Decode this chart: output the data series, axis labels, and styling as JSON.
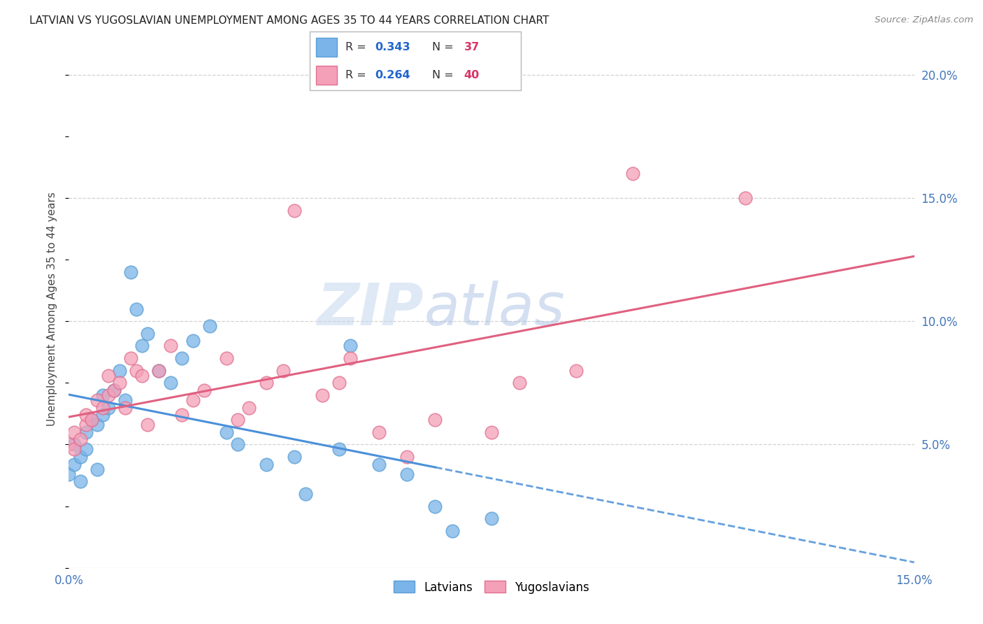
{
  "title": "LATVIAN VS YUGOSLAVIAN UNEMPLOYMENT AMONG AGES 35 TO 44 YEARS CORRELATION CHART",
  "source": "Source: ZipAtlas.com",
  "ylabel": "Unemployment Among Ages 35 to 44 years",
  "x_min": 0.0,
  "x_max": 0.15,
  "y_min": 0.0,
  "y_max": 0.21,
  "latvian_color": "#7ab4e8",
  "latvian_edge": "#5a9fd4",
  "yugoslavian_color": "#f4a0b8",
  "yugoslavian_edge": "#e07090",
  "trend_latvian_color": "#4a90d9",
  "trend_yugoslavian_color": "#e06080",
  "legend_blue": "#2266cc",
  "legend_pink": "#dd3366",
  "watermark_color": "#c8d8f0",
  "grid_color": "#cccccc",
  "background_color": "#ffffff",
  "latvians_label": "Latvians",
  "yugoslavians_label": "Yugoslavians",
  "latvian_x": [
    0.0,
    0.001,
    0.001,
    0.002,
    0.002,
    0.003,
    0.003,
    0.004,
    0.005,
    0.005,
    0.006,
    0.006,
    0.007,
    0.008,
    0.009,
    0.01,
    0.011,
    0.012,
    0.013,
    0.014,
    0.016,
    0.018,
    0.02,
    0.022,
    0.025,
    0.028,
    0.03,
    0.035,
    0.04,
    0.042,
    0.048,
    0.05,
    0.055,
    0.06,
    0.065,
    0.068,
    0.075
  ],
  "latvian_y": [
    0.038,
    0.042,
    0.05,
    0.035,
    0.045,
    0.048,
    0.055,
    0.06,
    0.04,
    0.058,
    0.062,
    0.07,
    0.065,
    0.072,
    0.08,
    0.068,
    0.12,
    0.105,
    0.09,
    0.095,
    0.08,
    0.075,
    0.085,
    0.092,
    0.098,
    0.055,
    0.05,
    0.042,
    0.045,
    0.03,
    0.048,
    0.09,
    0.042,
    0.038,
    0.025,
    0.015,
    0.02
  ],
  "yugoslavian_x": [
    0.0,
    0.001,
    0.001,
    0.002,
    0.003,
    0.003,
    0.004,
    0.005,
    0.006,
    0.007,
    0.007,
    0.008,
    0.009,
    0.01,
    0.011,
    0.012,
    0.013,
    0.014,
    0.016,
    0.018,
    0.02,
    0.022,
    0.024,
    0.028,
    0.03,
    0.032,
    0.035,
    0.038,
    0.04,
    0.045,
    0.048,
    0.05,
    0.055,
    0.06,
    0.065,
    0.075,
    0.08,
    0.09,
    0.1,
    0.12
  ],
  "yugoslavian_y": [
    0.05,
    0.048,
    0.055,
    0.052,
    0.058,
    0.062,
    0.06,
    0.068,
    0.065,
    0.07,
    0.078,
    0.072,
    0.075,
    0.065,
    0.085,
    0.08,
    0.078,
    0.058,
    0.08,
    0.09,
    0.062,
    0.068,
    0.072,
    0.085,
    0.06,
    0.065,
    0.075,
    0.08,
    0.145,
    0.07,
    0.075,
    0.085,
    0.055,
    0.045,
    0.06,
    0.055,
    0.075,
    0.08,
    0.16,
    0.15
  ]
}
